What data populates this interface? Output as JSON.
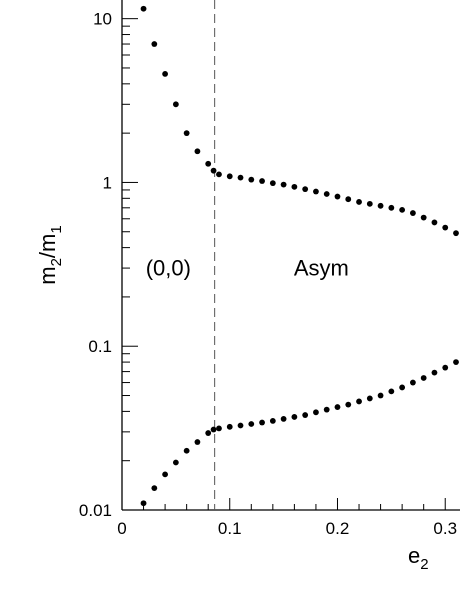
{
  "chart_data": {
    "type": "scatter",
    "xlabel": "e",
    "xlabel_sub": "2",
    "ylabel": "m",
    "ylabel_sub1": "2",
    "ylabel_mid": "/m",
    "ylabel_sub2": "1",
    "y_scale": "log",
    "xlim": [
      0,
      0.31
    ],
    "ylim": [
      0.01,
      13
    ],
    "x_ticks": [
      {
        "value": 0,
        "label": "0"
      },
      {
        "value": 0.1,
        "label": "0.1"
      },
      {
        "value": 0.2,
        "label": "0.2"
      },
      {
        "value": 0.3,
        "label": "0.3"
      }
    ],
    "y_ticks": [
      {
        "value": 0.01,
        "label": "0.01"
      },
      {
        "value": 0.1,
        "label": "0.1"
      },
      {
        "value": 1,
        "label": "1"
      },
      {
        "value": 10,
        "label": "10"
      }
    ],
    "vline": 0.086,
    "annotations": [
      {
        "text": "(0,0)",
        "x": 0.043,
        "y": 0.27
      },
      {
        "text": "Asym",
        "x": 0.185,
        "y": 0.27
      }
    ],
    "series": [
      {
        "points": [
          [
            0.02,
            11.5
          ],
          [
            0.03,
            7.0
          ],
          [
            0.04,
            4.6
          ],
          [
            0.05,
            3.0
          ],
          [
            0.06,
            2.0
          ],
          [
            0.07,
            1.55
          ],
          [
            0.08,
            1.3
          ],
          [
            0.085,
            1.18
          ],
          [
            0.09,
            1.12
          ],
          [
            0.1,
            1.09
          ],
          [
            0.11,
            1.07
          ],
          [
            0.12,
            1.04
          ],
          [
            0.13,
            1.02
          ],
          [
            0.14,
            0.99
          ],
          [
            0.15,
            0.97
          ],
          [
            0.16,
            0.94
          ],
          [
            0.17,
            0.91
          ],
          [
            0.18,
            0.88
          ],
          [
            0.19,
            0.85
          ],
          [
            0.2,
            0.82
          ],
          [
            0.21,
            0.79
          ],
          [
            0.22,
            0.76
          ],
          [
            0.23,
            0.74
          ],
          [
            0.24,
            0.72
          ],
          [
            0.25,
            0.7
          ],
          [
            0.26,
            0.68
          ],
          [
            0.27,
            0.65
          ],
          [
            0.28,
            0.61
          ],
          [
            0.29,
            0.57
          ],
          [
            0.3,
            0.53
          ],
          [
            0.31,
            0.49
          ]
        ]
      },
      {
        "points": [
          [
            0.02,
            0.011
          ],
          [
            0.03,
            0.0136
          ],
          [
            0.04,
            0.0165
          ],
          [
            0.05,
            0.0195
          ],
          [
            0.06,
            0.023
          ],
          [
            0.07,
            0.026
          ],
          [
            0.08,
            0.0295
          ],
          [
            0.085,
            0.031
          ],
          [
            0.09,
            0.0315
          ],
          [
            0.1,
            0.0322
          ],
          [
            0.11,
            0.0328
          ],
          [
            0.12,
            0.0335
          ],
          [
            0.13,
            0.0342
          ],
          [
            0.14,
            0.035
          ],
          [
            0.15,
            0.036
          ],
          [
            0.16,
            0.037
          ],
          [
            0.17,
            0.038
          ],
          [
            0.18,
            0.0395
          ],
          [
            0.19,
            0.041
          ],
          [
            0.2,
            0.0425
          ],
          [
            0.21,
            0.044
          ],
          [
            0.22,
            0.046
          ],
          [
            0.23,
            0.048
          ],
          [
            0.24,
            0.05
          ],
          [
            0.25,
            0.053
          ],
          [
            0.26,
            0.056
          ],
          [
            0.27,
            0.06
          ],
          [
            0.28,
            0.064
          ],
          [
            0.29,
            0.069
          ],
          [
            0.3,
            0.074
          ],
          [
            0.31,
            0.08
          ]
        ]
      }
    ]
  }
}
